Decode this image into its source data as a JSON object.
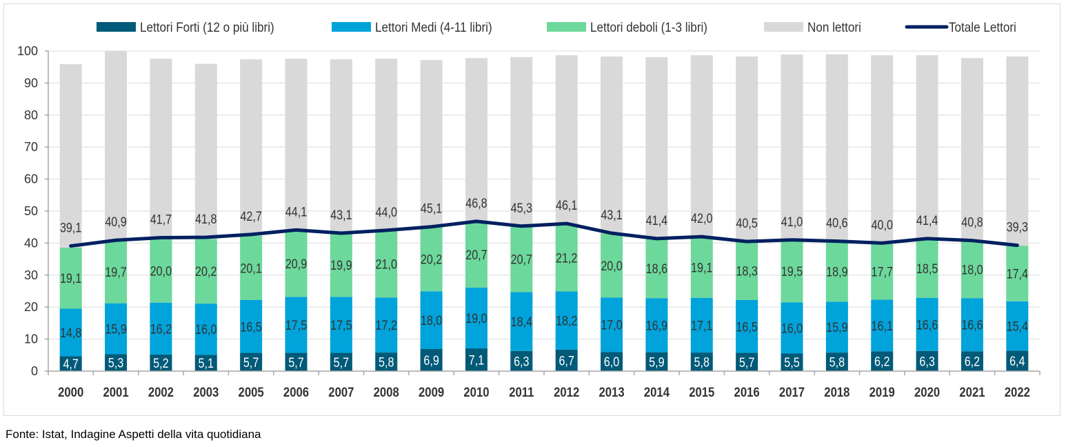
{
  "chart_data": {
    "type": "bar",
    "stacked": true,
    "title": "",
    "xlabel": "",
    "ylabel": "",
    "ylim": [
      0,
      100
    ],
    "yticks": [
      0,
      10,
      20,
      30,
      40,
      50,
      60,
      70,
      80,
      90,
      100
    ],
    "grid": true,
    "legend_placement": "top",
    "categories": [
      "2000",
      "2001",
      "2002",
      "2003",
      "2005",
      "2006",
      "2007",
      "2008",
      "2009",
      "2010",
      "2011",
      "2012",
      "2013",
      "2014",
      "2015",
      "2016",
      "2017",
      "2018",
      "2019",
      "2020",
      "2021",
      "2022"
    ],
    "series": [
      {
        "name": "Lettori Forti (12 o più libri)",
        "color": "#005a78",
        "label_color": "#ffffff",
        "values": [
          4.7,
          5.3,
          5.2,
          5.1,
          5.7,
          5.7,
          5.7,
          5.8,
          6.9,
          7.1,
          6.3,
          6.7,
          6.0,
          5.9,
          5.8,
          5.7,
          5.5,
          5.8,
          6.2,
          6.3,
          6.2,
          6.4
        ],
        "labels": [
          "4,7",
          "5,3",
          "5,2",
          "5,1",
          "5,7",
          "5,7",
          "5,7",
          "5,8",
          "6,9",
          "7,1",
          "6,3",
          "6,7",
          "6,0",
          "5,9",
          "5,8",
          "5,7",
          "5,5",
          "5,8",
          "6,2",
          "6,3",
          "6,2",
          "6,4"
        ]
      },
      {
        "name": "Lettori Medi (4-11 libri)",
        "color": "#00a3da",
        "label_color": "#333333",
        "values": [
          14.8,
          15.9,
          16.2,
          16.0,
          16.5,
          17.5,
          17.5,
          17.2,
          18.0,
          19.0,
          18.4,
          18.2,
          17.0,
          16.9,
          17.1,
          16.5,
          16.0,
          15.9,
          16.1,
          16.6,
          16.6,
          15.4
        ],
        "labels": [
          "14,8",
          "15,9",
          "16,2",
          "16,0",
          "16,5",
          "17,5",
          "17,5",
          "17,2",
          "18,0",
          "19,0",
          "18,4",
          "18,2",
          "17,0",
          "16,9",
          "17,1",
          "16,5",
          "16,0",
          "15,9",
          "16,1",
          "16,6",
          "16,6",
          "15,4"
        ]
      },
      {
        "name": "Lettori deboli (1-3 libri)",
        "color": "#6dd89b",
        "label_color": "#333333",
        "values": [
          19.1,
          19.7,
          20.0,
          20.2,
          20.1,
          20.9,
          19.9,
          21.0,
          20.2,
          20.7,
          20.7,
          21.2,
          20.0,
          18.6,
          19.1,
          18.3,
          19.5,
          18.9,
          17.7,
          18.5,
          18.0,
          17.4
        ],
        "labels": [
          "19,1",
          "19,7",
          "20,0",
          "20,2",
          "20,1",
          "20,9",
          "19,9",
          "21,0",
          "20,2",
          "20,7",
          "20,7",
          "21,2",
          "20,0",
          "18,6",
          "19,1",
          "18,3",
          "19,5",
          "18,9",
          "17,7",
          "18,5",
          "18,0",
          "17,4"
        ]
      },
      {
        "name": "Non lettori",
        "color": "#d9d9d9",
        "values": [
          57.3,
          59.1,
          56.2,
          54.7,
          55.1,
          53.5,
          54.3,
          53.6,
          52.1,
          51.0,
          52.7,
          52.6,
          55.3,
          56.7,
          56.7,
          57.8,
          57.9,
          58.4,
          58.7,
          57.3,
          57.0,
          59.1
        ]
      }
    ],
    "line": {
      "name": "Totale Lettori",
      "color": "#002060",
      "values": [
        39.1,
        40.9,
        41.7,
        41.8,
        42.7,
        44.1,
        43.1,
        44.0,
        45.1,
        46.8,
        45.3,
        46.1,
        43.1,
        41.4,
        42.0,
        40.5,
        41.0,
        40.6,
        40.0,
        41.4,
        40.8,
        39.3
      ],
      "labels": [
        "39,1",
        "40,9",
        "41,7",
        "41,8",
        "42,7",
        "44,1",
        "43,1",
        "44,0",
        "45,1",
        "46,8",
        "45,3",
        "46,1",
        "43,1",
        "41,4",
        "42,0",
        "40,5",
        "41,0",
        "40,6",
        "40,0",
        "41,4",
        "40,8",
        "39,3"
      ]
    }
  },
  "source": "Fonte: Istat, Indagine Aspetti della vita quotidiana"
}
